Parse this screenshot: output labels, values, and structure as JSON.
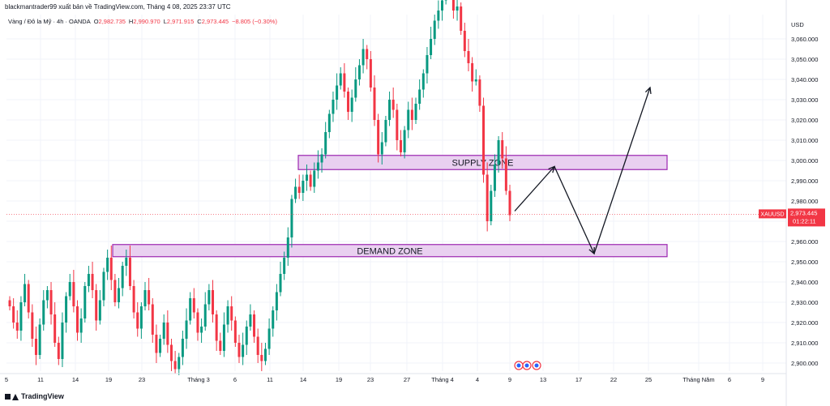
{
  "header": {
    "publisher_line": "blackmantrader99 xuất bản về TradingView.com, Tháng 4 08, 2025 23:37 UTC"
  },
  "ohlc": {
    "symbol_desc": "Vàng / Đô la Mỹ · 4h · OANDA",
    "open_label": "O",
    "open": "2,982.735",
    "high_label": "H",
    "high": "2,990.970",
    "low_label": "L",
    "low": "2,971.915",
    "close_label": "C",
    "close": "2,973.445",
    "change": "−8.805 (−0.30%)"
  },
  "price_scale": {
    "currency": "USD",
    "ticker": "XAUUSD",
    "last_price": "2,973.445",
    "countdown": "01:22:11"
  },
  "zones": {
    "supply_label": "SUPPLY ZONE",
    "demand_label": "DEMAND ZONE"
  },
  "footer": {
    "brand": "TradingView"
  },
  "colors": {
    "up": "#089981",
    "down": "#f23645",
    "zone_fill": "#e9d0f0",
    "zone_border": "#9c27b0",
    "grid": "#f0f3fa"
  },
  "chart_data": {
    "type": "candlestick",
    "symbol": "XAUUSD",
    "timeframe": "4h",
    "y_ticks": [
      2900,
      2910,
      2920,
      2930,
      2940,
      2950,
      2960,
      2970,
      2980,
      2990,
      3000,
      3010,
      3020,
      3030,
      3040,
      3050,
      3060
    ],
    "y_tick_labels": [
      "2,900.000",
      "2,910.000",
      "2,920.000",
      "2,930.000",
      "2,940.000",
      "2,950.000",
      "2,960.000",
      "2,970.000",
      "2,980.000",
      "2,990.000",
      "3,000.000",
      "3,010.000",
      "3,020.000",
      "3,030.000",
      "3,040.000",
      "3,050.000",
      "3,060.000"
    ],
    "ylim": [
      2896,
      3072
    ],
    "x_labels": [
      "5",
      "11",
      "14",
      "19",
      "23",
      "Tháng 3",
      "6",
      "11",
      "14",
      "19",
      "23",
      "27",
      "Tháng 4",
      "4",
      "9",
      "13",
      "17",
      "22",
      "25",
      "Tháng Năm",
      "6",
      "9"
    ],
    "close": [
      2928,
      2920,
      2916,
      2930,
      2939,
      2925,
      2912,
      2904,
      2919,
      2931,
      2936,
      2924,
      2910,
      2902,
      2920,
      2933,
      2940,
      2928,
      2915,
      2922,
      2938,
      2944,
      2936,
      2921,
      2931,
      2945,
      2952,
      2941,
      2930,
      2937,
      2948,
      2952,
      2938,
      2925,
      2917,
      2928,
      2936,
      2929,
      2914,
      2905,
      2912,
      2920,
      2909,
      2901,
      2897,
      2903,
      2912,
      2921,
      2932,
      2925,
      2915,
      2918,
      2929,
      2936,
      2924,
      2911,
      2906,
      2919,
      2928,
      2921,
      2910,
      2903,
      2909,
      2918,
      2924,
      2913,
      2904,
      2901,
      2907,
      2917,
      2926,
      2935,
      2944,
      2952,
      2962,
      2981,
      2987,
      2984,
      2990,
      2993,
      2987,
      2995,
      2999,
      3003,
      3014,
      3023,
      3030,
      3037,
      3043,
      3034,
      3024,
      3031,
      3040,
      3047,
      3055,
      3050,
      3036,
      3020,
      3003,
      3009,
      3020,
      3030,
      3025,
      3010,
      3004,
      3015,
      3025,
      3020,
      3028,
      3035,
      3043,
      3052,
      3060,
      3069,
      3074,
      3079,
      3083,
      3086,
      3074,
      3076,
      3064,
      3054,
      3048,
      3039,
      3040,
      3027,
      2993,
      2970,
      2985,
      2998,
      3010,
      3001,
      2985,
      2973
    ],
    "last_price": 2973.445,
    "supply_zone": {
      "label": "SUPPLY ZONE",
      "low": 2995.5,
      "high": 3002.5
    },
    "demand_zone": {
      "label": "DEMAND ZONE",
      "low": 2952.5,
      "high": 2958.5
    },
    "projection_path": [
      [
        2975,
        2975
      ],
      [
        2995,
        2997
      ],
      [
        2954,
        2954
      ],
      [
        3036,
        3036
      ]
    ]
  }
}
